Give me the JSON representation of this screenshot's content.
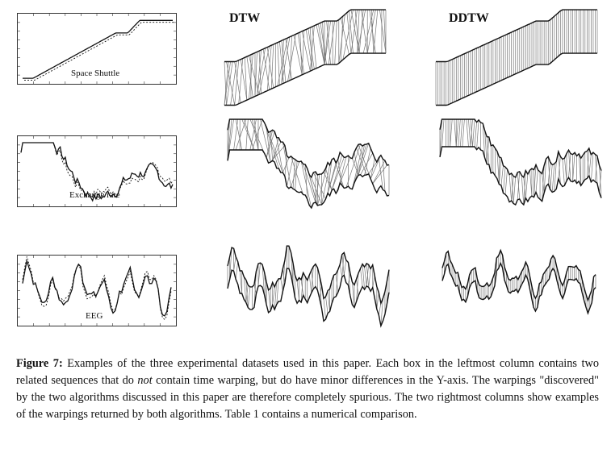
{
  "columns": {
    "dtw_label": "DTW",
    "ddtw_label": "DDTW"
  },
  "datasets": [
    {
      "label": "Space Shuttle"
    },
    {
      "label": "Exchange rate"
    },
    {
      "label": "EEG"
    }
  ],
  "caption": {
    "figure_label": "Figure 7:",
    "text_before_not": " Examples of the three experimental datasets used in this paper. Each box in the leftmost column contains two related sequences that do ",
    "not_word": "not",
    "text_after_not": " contain time warping, but do have minor differences in the Y-axis. The warpings \"discovered\" by the two algorithms discussed in this paper are therefore completely spurious. The two rightmost columns show examples of the warpings returned by both algorithms. Table 1 contains a numerical comparison."
  }
}
